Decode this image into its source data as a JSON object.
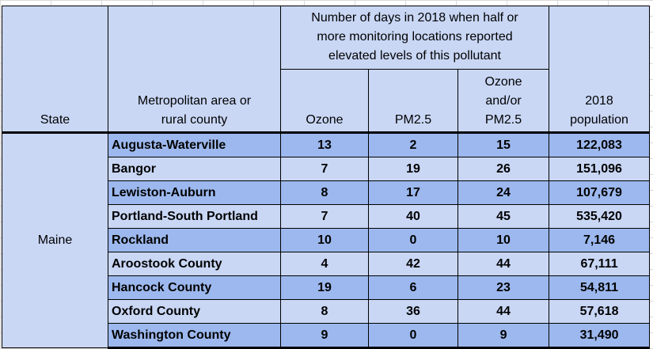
{
  "header": {
    "state": "State",
    "area": "Metropolitan area or\nrural county",
    "group_line1": "Number of days in 2018 when half or",
    "group_line2": "more monitoring locations reported",
    "group_line3": "elevated levels of this pollutant",
    "ozone": "Ozone",
    "pm25": "PM2.5",
    "either_line1": "Ozone",
    "either_line2": "and/or",
    "either_line3": "PM2.5",
    "pop_line1": "2018",
    "pop_line2": "population",
    "area_line1": "Metropolitan area or",
    "area_line2": "rural county"
  },
  "state": "Maine",
  "rows": [
    {
      "area": "Augusta-Waterville",
      "ozone": "13",
      "pm25": "2",
      "either": "15",
      "population": "122,083"
    },
    {
      "area": "Bangor",
      "ozone": "7",
      "pm25": "19",
      "either": "26",
      "population": "151,096"
    },
    {
      "area": "Lewiston-Auburn",
      "ozone": "8",
      "pm25": "17",
      "either": "24",
      "population": "107,679"
    },
    {
      "area": "Portland-South Portland",
      "ozone": "7",
      "pm25": "40",
      "either": "45",
      "population": "535,420"
    },
    {
      "area": "Rockland",
      "ozone": "10",
      "pm25": "0",
      "either": "10",
      "population": "7,146"
    },
    {
      "area": "Aroostook County",
      "ozone": "4",
      "pm25": "42",
      "either": "44",
      "population": "67,111"
    },
    {
      "area": "Hancock County",
      "ozone": "19",
      "pm25": "6",
      "either": "23",
      "population": "54,811"
    },
    {
      "area": "Oxford County",
      "ozone": "8",
      "pm25": "36",
      "either": "44",
      "population": "57,618"
    },
    {
      "area": "Washington County",
      "ozone": "9",
      "pm25": "0",
      "either": "9",
      "population": "31,490"
    }
  ],
  "colors": {
    "header_bg": "#c9d7f5",
    "row_dark": "#9cb8ee",
    "row_light": "#c9d7f5"
  }
}
